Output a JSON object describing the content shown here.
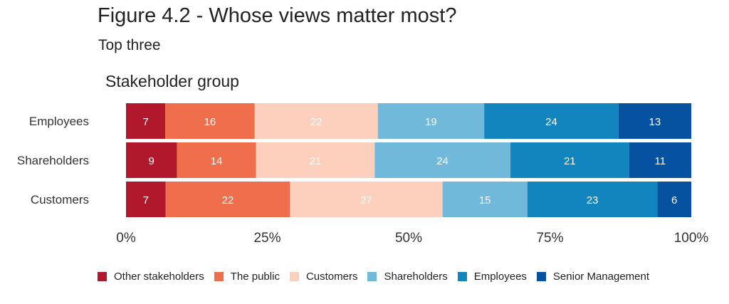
{
  "title": "Figure 4.2 - Whose views matter most?",
  "subtitle": "Top three",
  "group_label": "Stakeholder group",
  "chart_data": {
    "type": "bar",
    "orientation": "horizontal",
    "stacked": true,
    "percent_stacked": true,
    "categories": [
      "Employees",
      "Shareholders",
      "Customers"
    ],
    "series": [
      {
        "name": "Other stakeholders",
        "color": "#b2182b",
        "values": [
          7,
          9,
          7
        ]
      },
      {
        "name": "The public",
        "color": "#ef6f4d",
        "values": [
          16,
          14,
          22
        ]
      },
      {
        "name": "Customers",
        "color": "#fcd0bc",
        "values": [
          22,
          21,
          27
        ]
      },
      {
        "name": "Shareholders",
        "color": "#71b9da",
        "values": [
          19,
          24,
          15
        ]
      },
      {
        "name": "Employees",
        "color": "#1284be",
        "values": [
          24,
          21,
          23
        ]
      },
      {
        "name": "Senior Management",
        "color": "#0652a0",
        "values": [
          13,
          11,
          6
        ]
      }
    ],
    "x_ticks": [
      "0%",
      "25%",
      "50%",
      "75%",
      "100%"
    ],
    "xlim": [
      0,
      100
    ],
    "grid": false,
    "legend_position": "bottom"
  }
}
